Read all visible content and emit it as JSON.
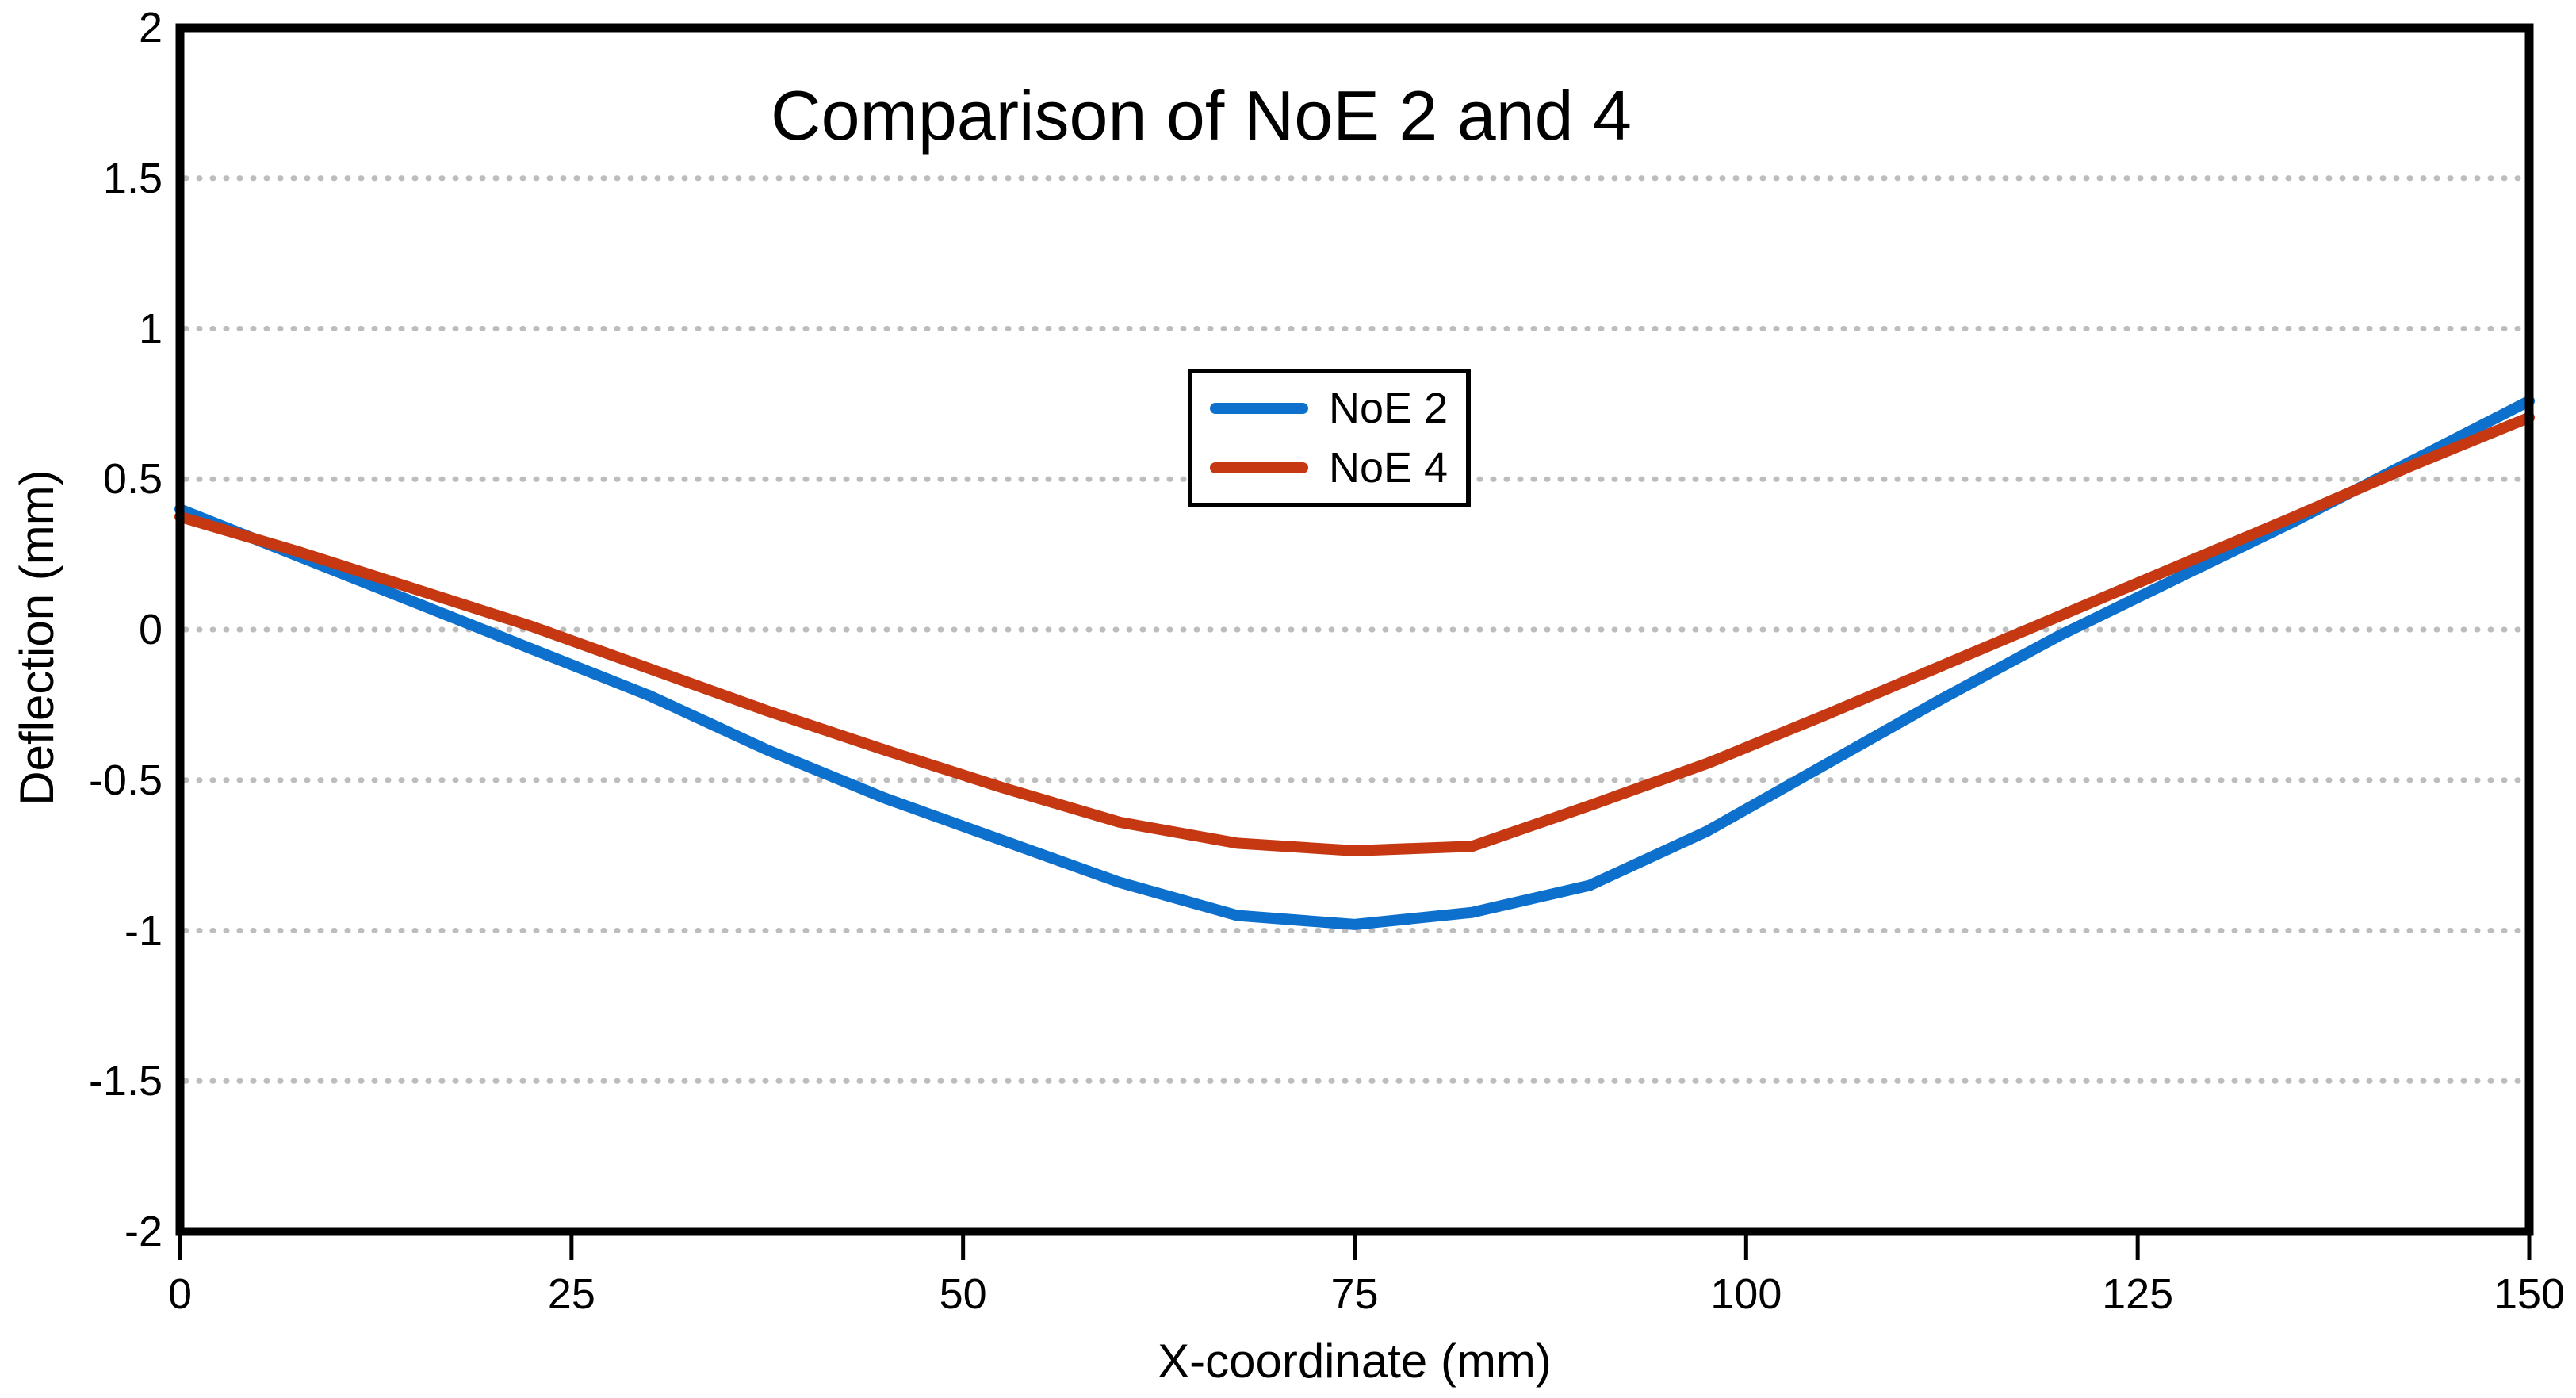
{
  "title": "Comparison of NoE 2 and 4",
  "colors": {
    "axis": "#000000",
    "gridline": "#bdbdbd",
    "background": "#ffffff",
    "series_blue": "#0c70cc",
    "series_red": "#c53812"
  },
  "legend": {
    "position": "upper-center",
    "items": [
      {
        "label": "NoE 2",
        "color": "#0c70cc"
      },
      {
        "label": "NoE 4",
        "color": "#c53812"
      }
    ]
  },
  "axes": {
    "x_title": "X-coordinate (mm)",
    "y_title": "Deflection (mm)",
    "x_tick_labels": [
      "0",
      "25",
      "50",
      "75",
      "100",
      "125",
      "150"
    ],
    "y_tick_labels": [
      "2",
      "1.5",
      "1",
      "0.5",
      "0",
      "-0.5",
      "-1",
      "-1.5",
      "-2"
    ]
  },
  "chart_data": {
    "type": "line",
    "title": "Comparison of NoE 2 and 4",
    "xlabel": "X-coordinate (mm)",
    "ylabel": "Deflection (mm)",
    "xlim": [
      0,
      150
    ],
    "ylim": [
      -2,
      2
    ],
    "x_ticks": [
      0,
      25,
      50,
      75,
      100,
      125,
      150
    ],
    "y_ticks": [
      2,
      1.5,
      1,
      0.5,
      0,
      -0.5,
      -1,
      -1.5,
      -2
    ],
    "grid": "horizontal dashed gridlines at 0.5 intervals",
    "legend_position": "upper-center",
    "x": [
      0,
      7.5,
      15,
      22.5,
      30,
      37.5,
      45,
      52.5,
      60,
      67.5,
      75,
      82.5,
      90,
      97.5,
      105,
      112.5,
      120,
      127.5,
      135,
      142.5,
      150
    ],
    "series": [
      {
        "name": "NoE 2",
        "color": "#0c70cc",
        "values": [
          0.4,
          0.245,
          0.09,
          -0.065,
          -0.22,
          -0.4,
          -0.56,
          -0.7,
          -0.84,
          -0.95,
          -0.98,
          -0.94,
          -0.85,
          -0.67,
          -0.45,
          -0.23,
          -0.02,
          0.17,
          0.36,
          0.56,
          0.76
        ]
      },
      {
        "name": "NoE 4",
        "color": "#c53812",
        "values": [
          0.375,
          0.26,
          0.135,
          0.01,
          -0.13,
          -0.27,
          -0.4,
          -0.525,
          -0.64,
          -0.71,
          -0.735,
          -0.72,
          -0.585,
          -0.445,
          -0.285,
          -0.12,
          0.045,
          0.21,
          0.375,
          0.545,
          0.705
        ]
      }
    ]
  }
}
